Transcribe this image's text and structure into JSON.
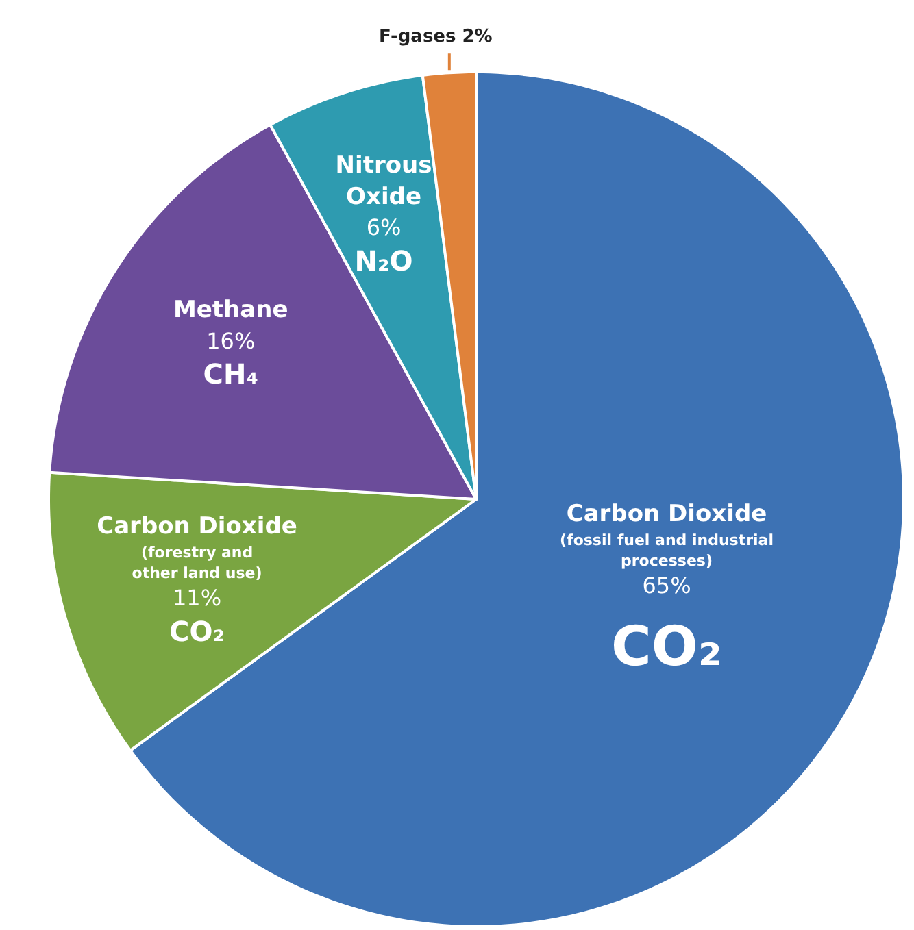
{
  "chart_data": {
    "type": "pie",
    "categories": [
      "Carbon Dioxide (fossil fuel and industrial processes)",
      "Carbon Dioxide (forestry and other land use)",
      "Methane",
      "Nitrous Oxide",
      "F-gases"
    ],
    "values": [
      65,
      11,
      16,
      6,
      2
    ],
    "colors": [
      "#3d72b4",
      "#7aa541",
      "#6b4c9a",
      "#2e9bb0",
      "#e0823a"
    ],
    "value_labels": [
      "65%",
      "11%",
      "16%",
      "6%",
      "2%"
    ],
    "annotations": [
      "CO₂",
      "CO₂",
      "CH₄",
      "N₂O"
    ]
  }
}
